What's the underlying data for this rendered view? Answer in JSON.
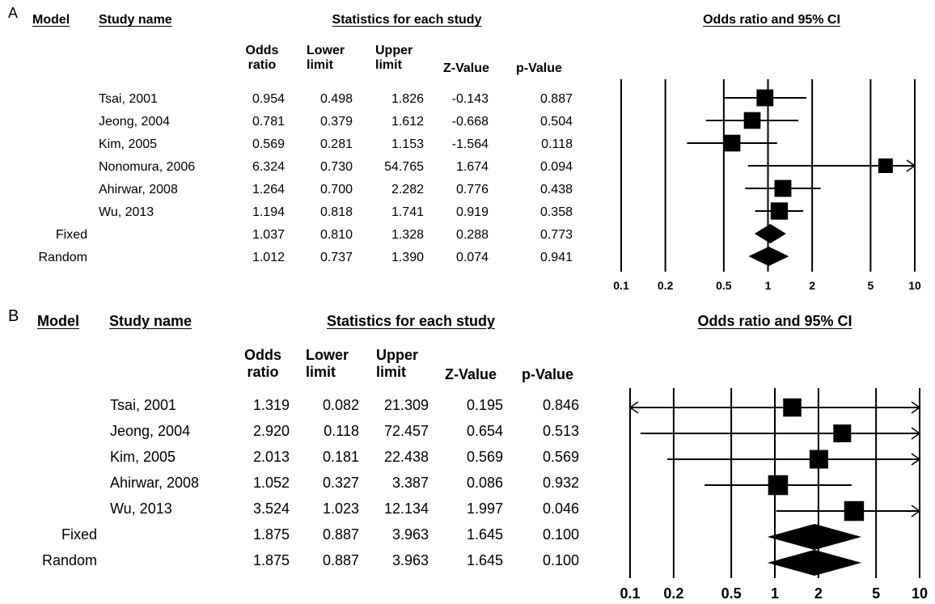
{
  "panels": [
    {
      "label": "A",
      "headers": {
        "model": "Model",
        "study": "Study name",
        "stats_group": "Statistics for each study",
        "plot": "Odds ratio and 95% CI",
        "or_1": "Odds",
        "or_2": "ratio",
        "lower_1": "Lower",
        "lower_2": "limit",
        "upper_1": "Upper",
        "upper_2": "limit",
        "z": "Z-Value",
        "p": "p-Value"
      },
      "rows": [
        {
          "model": "",
          "study": "Tsai, 2001",
          "or": "0.954",
          "lower": "0.498",
          "upper": "1.826",
          "z": "-0.143",
          "p": "0.887"
        },
        {
          "model": "",
          "study": "Jeong, 2004",
          "or": "0.781",
          "lower": "0.379",
          "upper": "1.612",
          "z": "-0.668",
          "p": "0.504"
        },
        {
          "model": "",
          "study": "Kim, 2005",
          "or": "0.569",
          "lower": "0.281",
          "upper": "1.153",
          "z": "-1.564",
          "p": "0.118"
        },
        {
          "model": "",
          "study": "Nonomura, 2006",
          "or": "6.324",
          "lower": "0.730",
          "upper": "54.765",
          "z": "1.674",
          "p": "0.094"
        },
        {
          "model": "",
          "study": "Ahirwar, 2008",
          "or": "1.264",
          "lower": "0.700",
          "upper": "2.282",
          "z": "0.776",
          "p": "0.438"
        },
        {
          "model": "",
          "study": "Wu, 2013",
          "or": "1.194",
          "lower": "0.818",
          "upper": "1.741",
          "z": "0.919",
          "p": "0.358"
        },
        {
          "model": "Fixed",
          "study": "",
          "or": "1.037",
          "lower": "0.810",
          "upper": "1.328",
          "z": "0.288",
          "p": "0.773"
        },
        {
          "model": "Random",
          "study": "",
          "or": "1.012",
          "lower": "0.737",
          "upper": "1.390",
          "z": "0.074",
          "p": "0.941"
        }
      ],
      "axis_ticks": [
        "0.1",
        "0.2",
        "0.5",
        "1",
        "2",
        "5",
        "10"
      ]
    },
    {
      "label": "B",
      "headers": {
        "model": "Model",
        "study": "Study name",
        "stats_group": "Statistics for each study",
        "plot": "Odds ratio and 95% CI",
        "or_1": "Odds",
        "or_2": "ratio",
        "lower_1": "Lower",
        "lower_2": "limit",
        "upper_1": "Upper",
        "upper_2": "limit",
        "z": "Z-Value",
        "p": "p-Value"
      },
      "rows": [
        {
          "model": "",
          "study": "Tsai, 2001",
          "or": "1.319",
          "lower": "0.082",
          "upper": "21.309",
          "z": "0.195",
          "p": "0.846"
        },
        {
          "model": "",
          "study": "Jeong, 2004",
          "or": "2.920",
          "lower": "0.118",
          "upper": "72.457",
          "z": "0.654",
          "p": "0.513"
        },
        {
          "model": "",
          "study": "Kim, 2005",
          "or": "2.013",
          "lower": "0.181",
          "upper": "22.438",
          "z": "0.569",
          "p": "0.569"
        },
        {
          "model": "",
          "study": "Ahirwar, 2008",
          "or": "1.052",
          "lower": "0.327",
          "upper": "3.387",
          "z": "0.086",
          "p": "0.932"
        },
        {
          "model": "",
          "study": "Wu, 2013",
          "or": "3.524",
          "lower": "1.023",
          "upper": "12.134",
          "z": "1.997",
          "p": "0.046"
        },
        {
          "model": "Fixed",
          "study": "",
          "or": "1.875",
          "lower": "0.887",
          "upper": "3.963",
          "z": "1.645",
          "p": "0.100"
        },
        {
          "model": "Random",
          "study": "",
          "or": "1.875",
          "lower": "0.887",
          "upper": "3.963",
          "z": "1.645",
          "p": "0.100"
        }
      ],
      "axis_ticks": [
        "0.1",
        "0.2",
        "0.5",
        "1",
        "2",
        "5",
        "10"
      ]
    }
  ],
  "chart_data": [
    {
      "type": "forest",
      "panel": "A",
      "title": "Odds ratio and 95% CI",
      "x_scale": "log",
      "xlim": [
        0.1,
        10
      ],
      "xticks": [
        0.1,
        0.2,
        0.5,
        1,
        2,
        5,
        10
      ],
      "gridlines": "vertical at ticks",
      "studies": [
        {
          "name": "Tsai, 2001",
          "or": 0.954,
          "lower": 0.498,
          "upper": 1.826
        },
        {
          "name": "Jeong, 2004",
          "or": 0.781,
          "lower": 0.379,
          "upper": 1.612
        },
        {
          "name": "Kim, 2005",
          "or": 0.569,
          "lower": 0.281,
          "upper": 1.153
        },
        {
          "name": "Nonomura, 2006",
          "or": 6.324,
          "lower": 0.73,
          "upper": 54.765
        },
        {
          "name": "Ahirwar, 2008",
          "or": 1.264,
          "lower": 0.7,
          "upper": 2.282
        },
        {
          "name": "Wu, 2013",
          "or": 1.194,
          "lower": 0.818,
          "upper": 1.741
        }
      ],
      "pooled": [
        {
          "name": "Fixed",
          "or": 1.037,
          "lower": 0.81,
          "upper": 1.328
        },
        {
          "name": "Random",
          "or": 1.012,
          "lower": 0.737,
          "upper": 1.39
        }
      ]
    },
    {
      "type": "forest",
      "panel": "B",
      "title": "Odds ratio and 95% CI",
      "x_scale": "log",
      "xlim": [
        0.1,
        10
      ],
      "xticks": [
        0.1,
        0.2,
        0.5,
        1,
        2,
        5,
        10
      ],
      "gridlines": "vertical at ticks",
      "studies": [
        {
          "name": "Tsai, 2001",
          "or": 1.319,
          "lower": 0.082,
          "upper": 21.309
        },
        {
          "name": "Jeong, 2004",
          "or": 2.92,
          "lower": 0.118,
          "upper": 72.457
        },
        {
          "name": "Kim, 2005",
          "or": 2.013,
          "lower": 0.181,
          "upper": 22.438
        },
        {
          "name": "Ahirwar, 2008",
          "or": 1.052,
          "lower": 0.327,
          "upper": 3.387
        },
        {
          "name": "Wu, 2013",
          "or": 3.524,
          "lower": 1.023,
          "upper": 12.134
        }
      ],
      "pooled": [
        {
          "name": "Fixed",
          "or": 1.875,
          "lower": 0.887,
          "upper": 3.963
        },
        {
          "name": "Random",
          "or": 1.875,
          "lower": 0.887,
          "upper": 3.963
        }
      ]
    }
  ]
}
